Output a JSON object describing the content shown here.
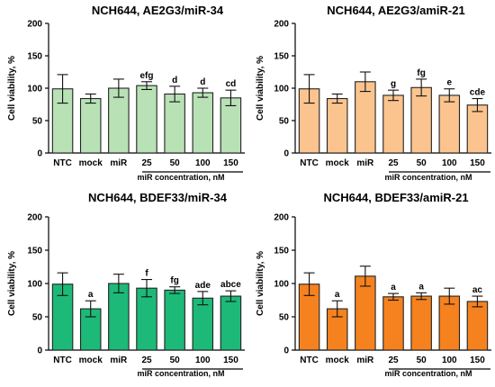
{
  "chart_data": [
    {
      "type": "bar",
      "title": "NCH644, AE2G3/miR-34",
      "ylabel": "Cell viability, %",
      "xnote": "miR concentration, nM",
      "ylim": [
        0,
        200
      ],
      "yticks": [
        0,
        50,
        100,
        150,
        200
      ],
      "categories": [
        "NTC",
        "mock",
        "miR",
        "25",
        "50",
        "100",
        "150"
      ],
      "values": [
        99,
        84,
        100,
        104,
        91,
        93,
        85
      ],
      "errors": [
        22,
        7,
        14,
        6,
        12,
        7,
        12
      ],
      "annotations": [
        "",
        "",
        "",
        "efg",
        "d",
        "d",
        "cd"
      ],
      "bar_color": "#b8e2b6",
      "edge_color": "#222222"
    },
    {
      "type": "bar",
      "title": "NCH644, AE2G3/amiR-21",
      "ylabel": "Cell viability, %",
      "xnote": "miR concentration, nM",
      "ylim": [
        0,
        200
      ],
      "yticks": [
        0,
        50,
        100,
        150,
        200
      ],
      "categories": [
        "NTC",
        "mock",
        "miR",
        "25",
        "50",
        "100",
        "150"
      ],
      "values": [
        99,
        84,
        110,
        89,
        101,
        89,
        74
      ],
      "errors": [
        22,
        7,
        15,
        8,
        13,
        10,
        10
      ],
      "annotations": [
        "",
        "",
        "",
        "g",
        "fg",
        "e",
        "cde"
      ],
      "bar_color": "#fbc48f",
      "edge_color": "#222222"
    },
    {
      "type": "bar",
      "title": "NCH644, BDEF33/miR-34",
      "ylabel": "Cell viability, %",
      "xnote": "miR concentration, nM",
      "ylim": [
        0,
        200
      ],
      "yticks": [
        0,
        50,
        100,
        150,
        200
      ],
      "categories": [
        "NTC",
        "mock",
        "miR",
        "25",
        "50",
        "100",
        "150"
      ],
      "values": [
        99,
        62,
        100,
        93,
        90,
        78,
        81
      ],
      "errors": [
        17,
        12,
        14,
        13,
        5,
        10,
        8
      ],
      "annotations": [
        "",
        "a",
        "",
        "f",
        "fg",
        "ade",
        "abce"
      ],
      "bar_color": "#1db978",
      "edge_color": "#222222"
    },
    {
      "type": "bar",
      "title": "NCH644, BDEF33/amiR-21",
      "ylabel": "Cell viability, %",
      "xnote": "miR concentration, nM",
      "ylim": [
        0,
        200
      ],
      "yticks": [
        0,
        50,
        100,
        150,
        200
      ],
      "categories": [
        "NTC",
        "mock",
        "miR",
        "25",
        "50",
        "100",
        "150"
      ],
      "values": [
        99,
        62,
        111,
        80,
        81,
        81,
        73
      ],
      "errors": [
        17,
        12,
        15,
        5,
        5,
        12,
        8
      ],
      "annotations": [
        "",
        "a",
        "",
        "a",
        "a",
        "",
        "ac"
      ],
      "bar_color": "#f5821f",
      "edge_color": "#222222"
    }
  ]
}
